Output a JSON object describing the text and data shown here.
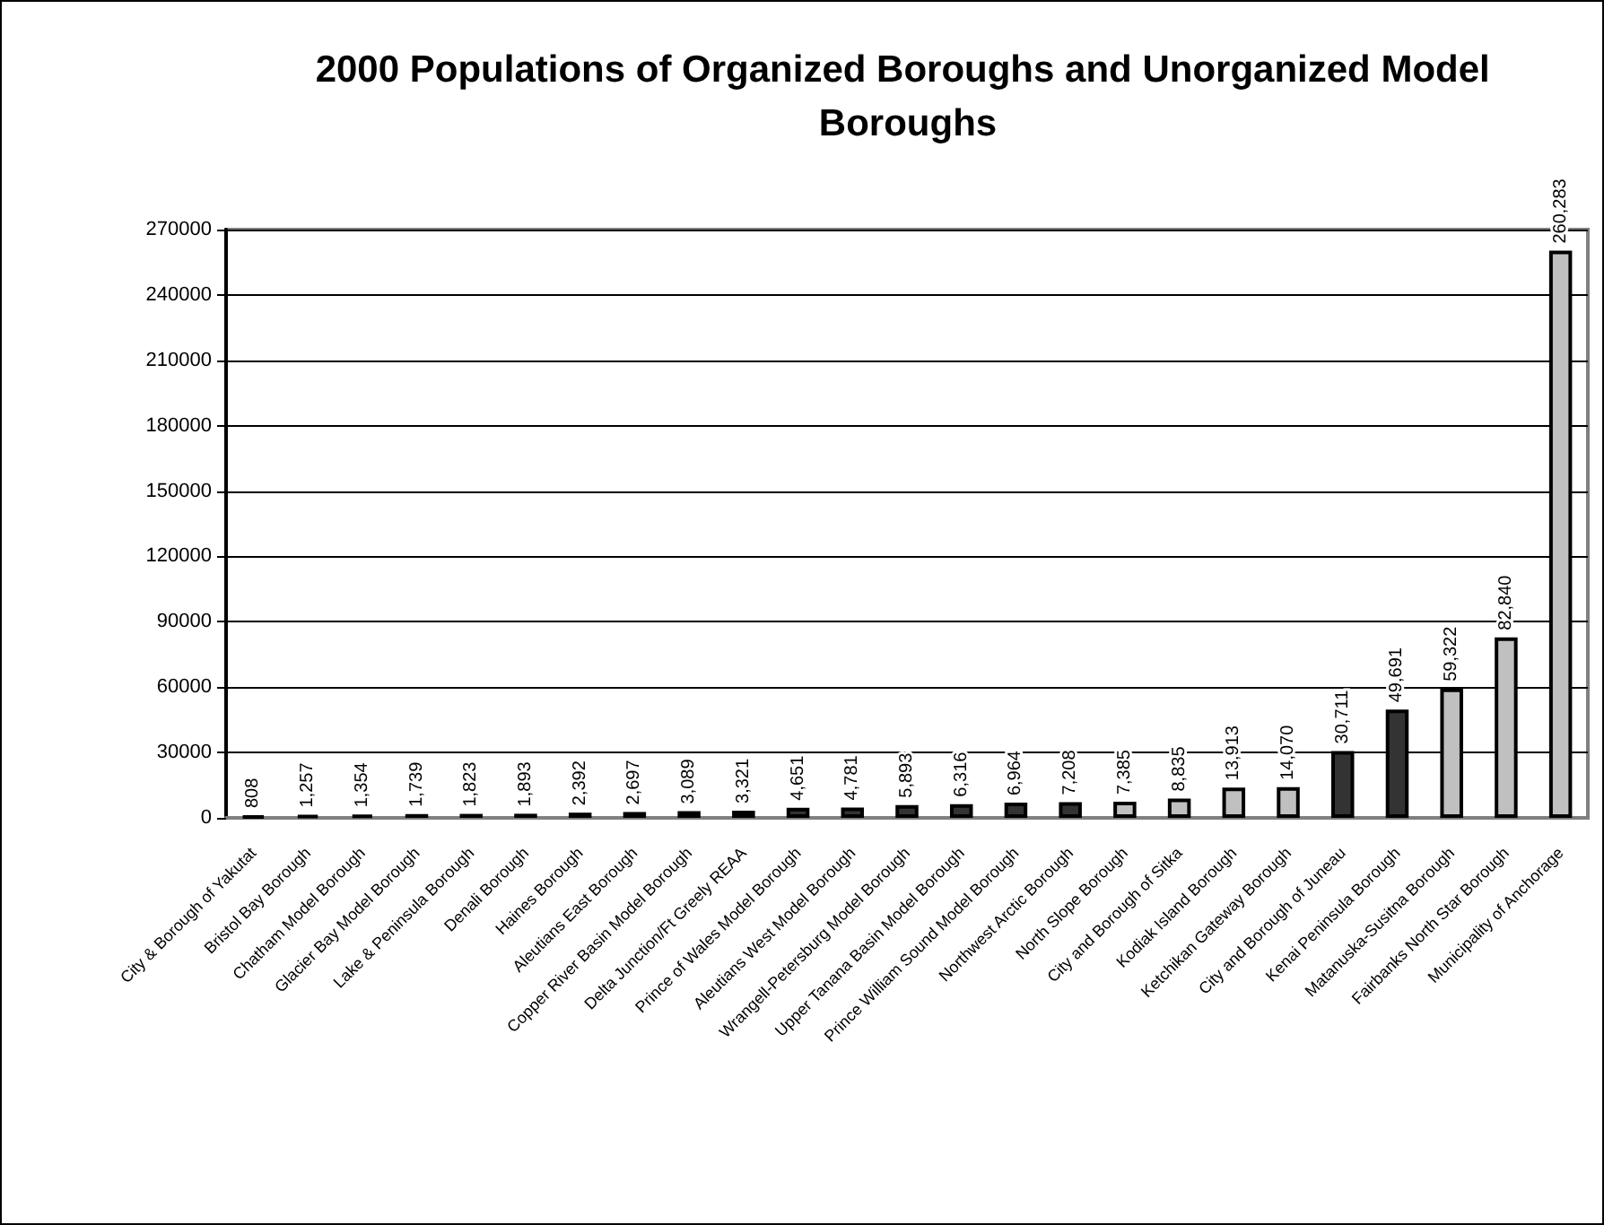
{
  "chart_data": {
    "type": "bar",
    "title": "2000 Populations of Organized Boroughs and Unorganized Model Boroughs",
    "categories": [
      "City & Borough of Yakutat",
      "Bristol Bay Borough",
      "Chatham Model Borough",
      "Glacier Bay Model Borough",
      "Lake & Peninsula Borough",
      "Denali Borough",
      "Haines Borough",
      "Aleutians East Borough",
      "Copper River Basin Model Borough",
      "Delta Junction/Ft Greely REAA",
      "Prince of Wales Model Borough",
      "Aleutians West Model Borough",
      "Wrangell-Petersburg Model Borough",
      "Upper Tanana Basin Model Borough",
      "Prince William Sound Model Borough",
      "Northwest Arctic Borough",
      "North Slope Borough",
      "City and Borough of Sitka",
      "Kodiak Island Borough",
      "Ketchikan Gateway Borough",
      "City and Borough of Juneau",
      "Kenai Peninsula Borough",
      "Matanuska-Susitna Borough",
      "Fairbanks North Star Borough",
      "Municipality of Anchorage"
    ],
    "values": [
      808,
      1257,
      1354,
      1739,
      1823,
      1893,
      2392,
      2697,
      3089,
      3321,
      4651,
      4781,
      5893,
      6316,
      6964,
      7208,
      7385,
      8835,
      13913,
      14070,
      30711,
      49691,
      59322,
      82840,
      260283
    ],
    "value_labels": [
      "808",
      "1,257",
      "1,354",
      "1,739",
      "1,823",
      "1,893",
      "2,392",
      "2,697",
      "3,089",
      "3,321",
      "4,651",
      "4,781",
      "5,893",
      "6,316",
      "6,964",
      "7,208",
      "7,385",
      "8,835",
      "13,913",
      "14,070",
      "30,711",
      "49,691",
      "59,322",
      "82,840",
      "260,283"
    ],
    "colors": [
      "#000000",
      "#000000",
      "#000000",
      "#000000",
      "#000000",
      "#000000",
      "#000000",
      "#c0c0c0",
      "#c0c0c0",
      "#ff0000",
      "#333333",
      "#333333",
      "#333333",
      "#333333",
      "#333333",
      "#333333",
      "#c0c0c0",
      "#c0c0c0",
      "#c0c0c0",
      "#c0c0c0",
      "#333333",
      "#333333",
      "#c0c0c0",
      "#c0c0c0",
      "#c0c0c0"
    ],
    "ylim": [
      0,
      270000
    ],
    "yticks": [
      0,
      30000,
      60000,
      90000,
      120000,
      150000,
      180000,
      210000,
      240000,
      270000
    ],
    "grid": "y"
  }
}
